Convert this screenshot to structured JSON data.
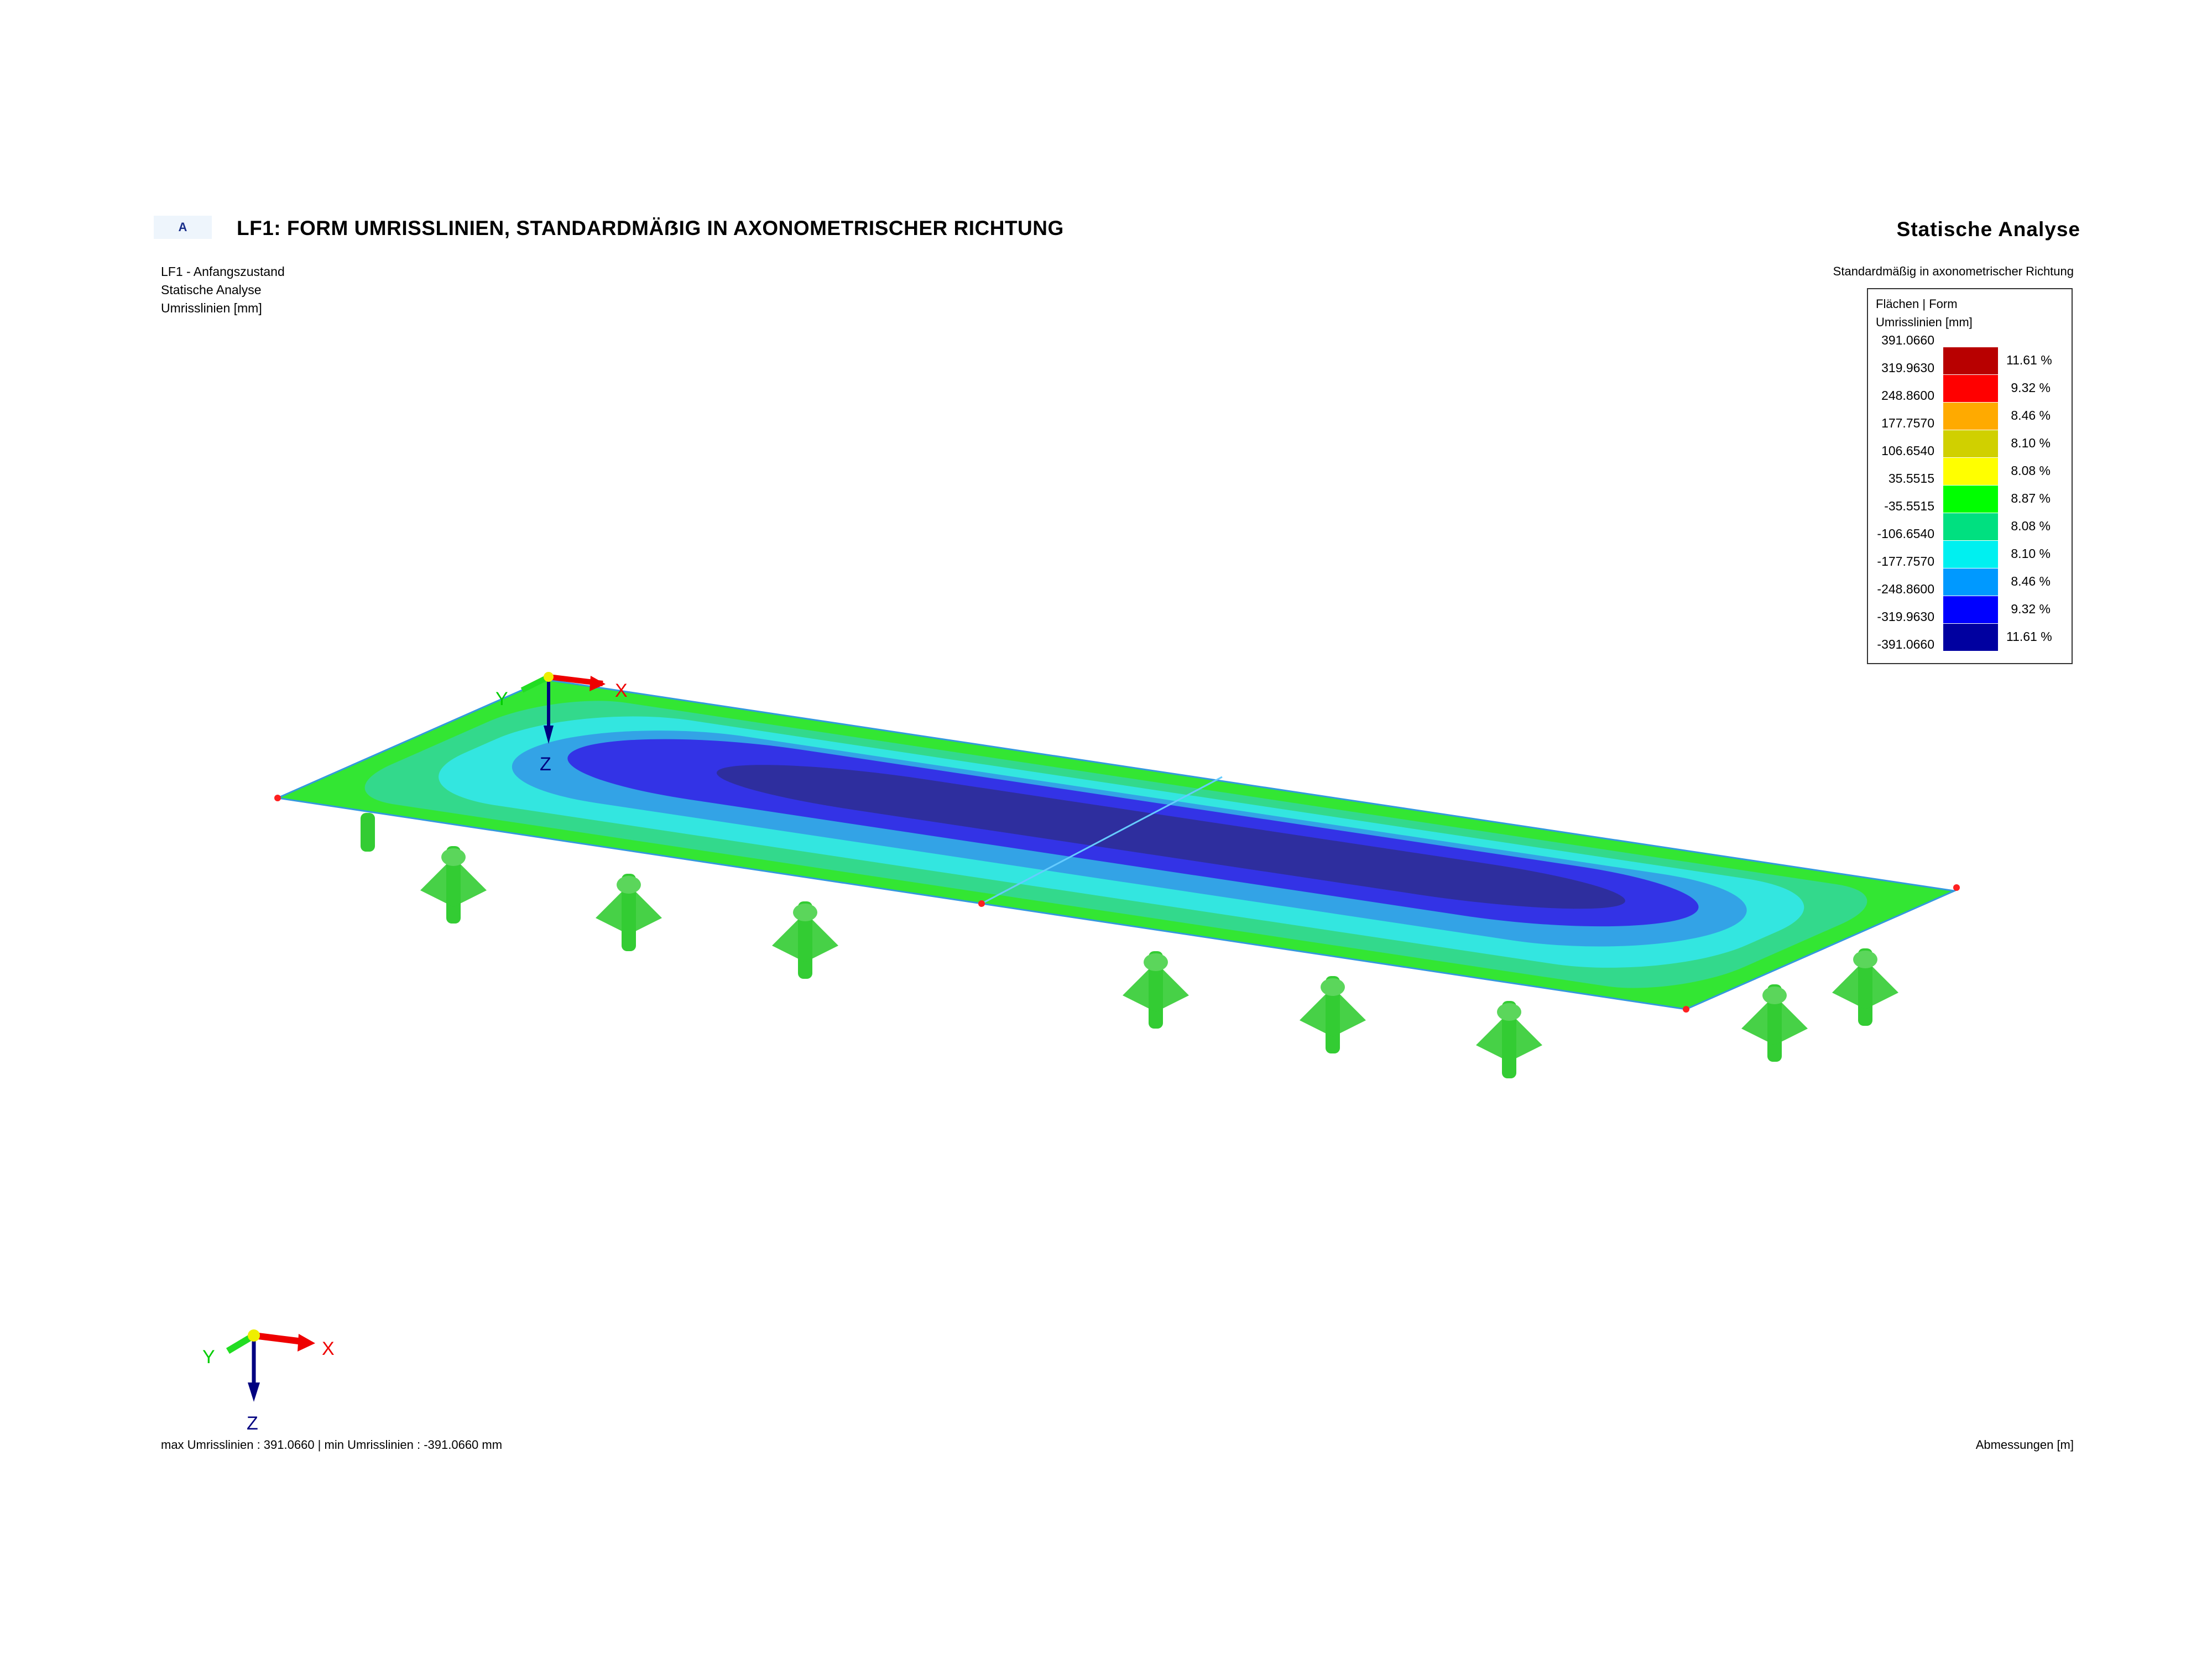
{
  "header": {
    "badge": "A",
    "title": "LF1: FORM UMRISSLINIEN, STANDARDMÄẞIG IN AXONOMETRISCHER RICHTUNG",
    "info_lines": [
      "LF1 - Anfangszustand",
      "Statische Analyse",
      "Umrisslinien  [mm]"
    ],
    "right_title": "Statische Analyse",
    "right_subtitle": "Standardmäßig in axonometrischer Richtung"
  },
  "legend": {
    "line1": "Flächen  |  Form",
    "line2": "Umrisslinien [mm]",
    "values": [
      "391.0660",
      "319.9630",
      "248.8600",
      "177.7570",
      "106.6540",
      "35.5515",
      "-35.5515",
      "-106.6540",
      "-177.7570",
      "-248.8600",
      "-319.9630",
      "-391.0660"
    ],
    "bands": [
      {
        "color": "#b80000",
        "percent": "11.61 %"
      },
      {
        "color": "#ff0000",
        "percent": "9.32 %"
      },
      {
        "color": "#ffaa00",
        "percent": "8.46 %"
      },
      {
        "color": "#d0d000",
        "percent": "8.10 %"
      },
      {
        "color": "#ffff00",
        "percent": "8.08 %"
      },
      {
        "color": "#00ff00",
        "percent": "8.87 %"
      },
      {
        "color": "#00e080",
        "percent": "8.08 %"
      },
      {
        "color": "#00f0f0",
        "percent": "8.10 %"
      },
      {
        "color": "#0099ff",
        "percent": "8.46 %"
      },
      {
        "color": "#0000ff",
        "percent": "9.32 %"
      },
      {
        "color": "#0000a0",
        "percent": "11.61 %"
      }
    ]
  },
  "model": {
    "contour_colors": [
      "#33e633",
      "#33d98c",
      "#33e6e0",
      "#33a3e6",
      "#3333e6",
      "#2e2e9e"
    ],
    "support_color": "#33cc33",
    "axes": {
      "x": "X",
      "y": "Y",
      "z": "Z",
      "x_color": "#ff0000",
      "y_color": "#00cc00",
      "z_color": "#000080"
    }
  },
  "footer": {
    "left": "max Umrisslinien : 391.0660 | min Umrisslinien : -391.0660 mm",
    "right": "Abmessungen [m]"
  }
}
